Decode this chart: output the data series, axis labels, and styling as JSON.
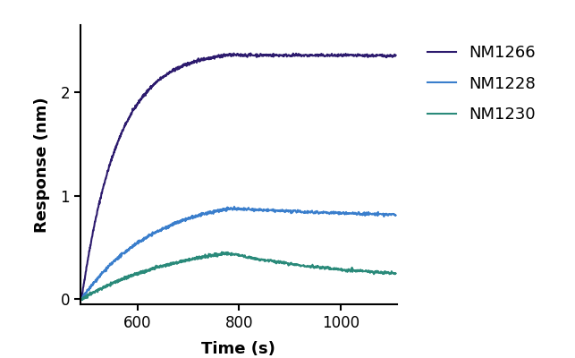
{
  "title": "",
  "xlabel": "Time (s)",
  "ylabel": "Response (nm)",
  "xlim": [
    488,
    1110
  ],
  "ylim": [
    -0.05,
    2.65
  ],
  "xticks": [
    600,
    800,
    1000
  ],
  "yticks": [
    0,
    1,
    2
  ],
  "series": [
    {
      "label": "NM1266",
      "color": "#2d1b6e",
      "assoc_start": 490,
      "assoc_end": 778,
      "peak": 2.36,
      "plateau": 2.28,
      "dissoc_end": 1108,
      "ka": 0.014,
      "kd": 0.00025
    },
    {
      "label": "NM1228",
      "color": "#3a7ecc",
      "assoc_start": 490,
      "assoc_end": 778,
      "peak": 0.875,
      "plateau": 0.715,
      "dissoc_end": 1108,
      "ka": 0.007,
      "kd": 0.0014
    },
    {
      "label": "NM1230",
      "color": "#2a8a7a",
      "assoc_start": 490,
      "assoc_end": 778,
      "peak": 0.445,
      "plateau": 0.185,
      "dissoc_end": 1108,
      "ka": 0.005,
      "kd": 0.0042
    }
  ],
  "background_color": "#ffffff",
  "noise_amplitude": 0.007,
  "figwidth": 6.43,
  "figheight": 4.0,
  "legend_fontsize": 13,
  "axis_label_fontsize": 13,
  "tick_fontsize": 12
}
